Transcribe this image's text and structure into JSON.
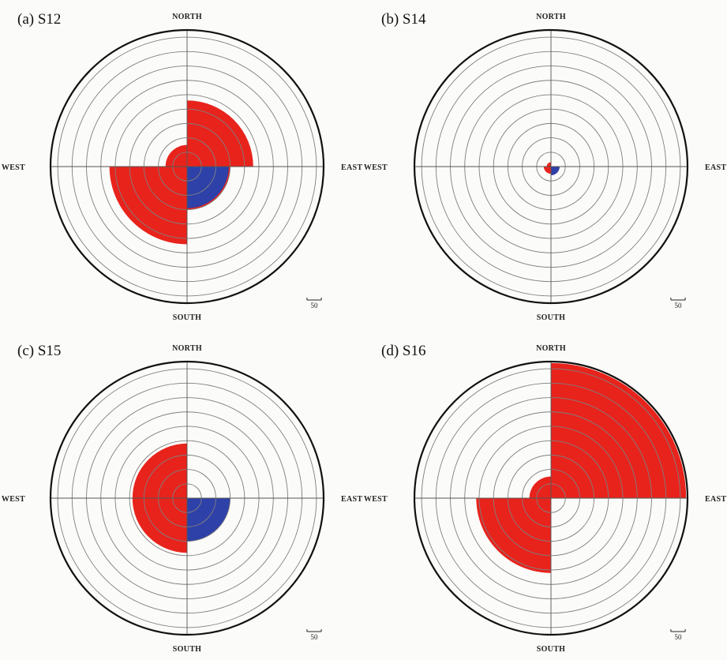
{
  "chart_data": [
    {
      "type": "rose",
      "title": "(a) S12",
      "direction_labels": {
        "north": "NORTH",
        "east": "EAST",
        "south": "SOUTH",
        "west": "WEST"
      },
      "scale_label": "50",
      "ring_step": 50,
      "rings": 9,
      "outer_limit": 475,
      "sectors": [
        {
          "direction": "north-east",
          "red": 230
        },
        {
          "direction": "south-east",
          "red": 150,
          "blue": 145
        },
        {
          "direction": "south-west",
          "red": 270
        },
        {
          "direction": "north-west",
          "red": 75
        }
      ],
      "colors": {
        "red": "#e8231c",
        "blue": "#2e41a8"
      }
    },
    {
      "type": "rose",
      "title": "(b) S14",
      "direction_labels": {
        "north": "NORTH",
        "east": "EAST",
        "south": "SOUTH",
        "west": "WEST"
      },
      "scale_label": "50",
      "ring_step": 50,
      "rings": 9,
      "outer_limit": 475,
      "sectors": [
        {
          "direction": "north-east",
          "red": 0
        },
        {
          "direction": "south-east",
          "red": 30,
          "blue": 30
        },
        {
          "direction": "south-west",
          "red": 25
        },
        {
          "direction": "north-west",
          "red": 15
        }
      ],
      "colors": {
        "red": "#e8231c",
        "blue": "#2e41a8"
      }
    },
    {
      "type": "rose",
      "title": "(c) S15",
      "direction_labels": {
        "north": "NORTH",
        "east": "EAST",
        "south": "SOUTH",
        "west": "WEST"
      },
      "scale_label": "50",
      "ring_step": 50,
      "rings": 9,
      "outer_limit": 475,
      "sectors": [
        {
          "direction": "north-east",
          "red": 0
        },
        {
          "direction": "south-east",
          "red": 150,
          "blue": 150
        },
        {
          "direction": "south-west",
          "red": 190
        },
        {
          "direction": "north-west",
          "red": 190
        }
      ],
      "colors": {
        "red": "#e8231c",
        "blue": "#2e41a8"
      }
    },
    {
      "type": "rose",
      "title": "(d) S16",
      "direction_labels": {
        "north": "NORTH",
        "east": "EAST",
        "south": "SOUTH",
        "west": "WEST"
      },
      "scale_label": "50",
      "ring_step": 50,
      "rings": 9,
      "outer_limit": 475,
      "sectors": [
        {
          "direction": "north-east",
          "red": 470
        },
        {
          "direction": "south-east",
          "red": 0
        },
        {
          "direction": "south-west",
          "red": 260
        },
        {
          "direction": "north-west",
          "red": 75
        }
      ],
      "colors": {
        "red": "#e8231c",
        "blue": "#2e41a8"
      }
    }
  ]
}
